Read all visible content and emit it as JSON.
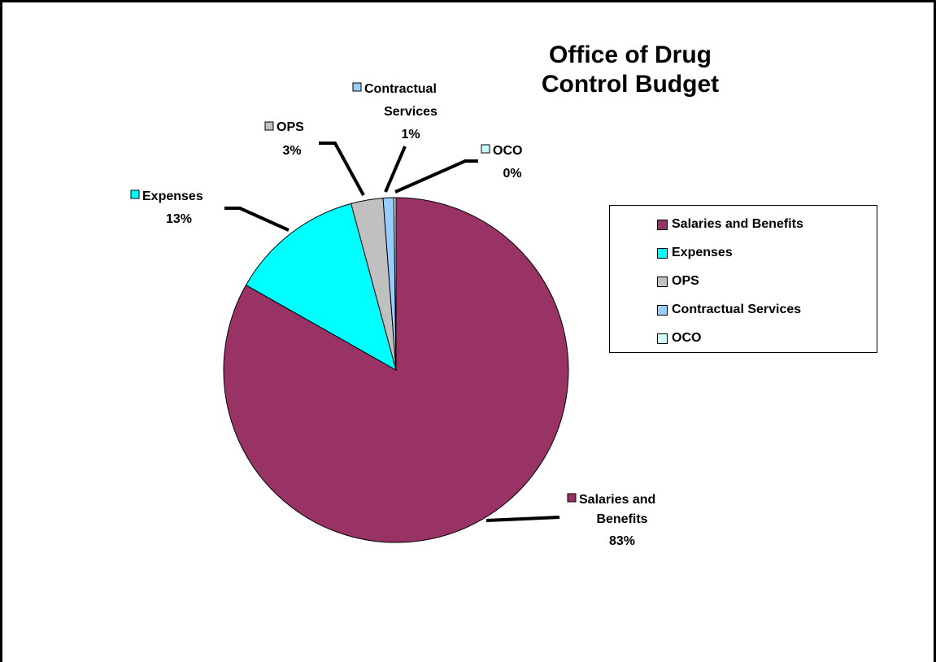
{
  "chart_data": {
    "type": "pie",
    "title": "Office of Drug Control Budget",
    "slices": [
      {
        "name": "Salaries and Benefits",
        "value": 83.2,
        "label": "83%",
        "color": "#993366"
      },
      {
        "name": "Expenses",
        "value": 12.6,
        "label": "13%",
        "color": "#00ffff"
      },
      {
        "name": "OPS",
        "value": 3.0,
        "label": "3%",
        "color": "#c0c0c0"
      },
      {
        "name": "Contractual Services",
        "value": 1.0,
        "label": "1%",
        "color": "#99ccff"
      },
      {
        "name": "OCO",
        "value": 0.2,
        "label": "0%",
        "color": "#ccffff"
      }
    ],
    "legend": {
      "position": "right",
      "items": [
        "Salaries and Benefits",
        "Expenses",
        "OPS",
        "Contractual Services",
        "OCO"
      ]
    }
  }
}
